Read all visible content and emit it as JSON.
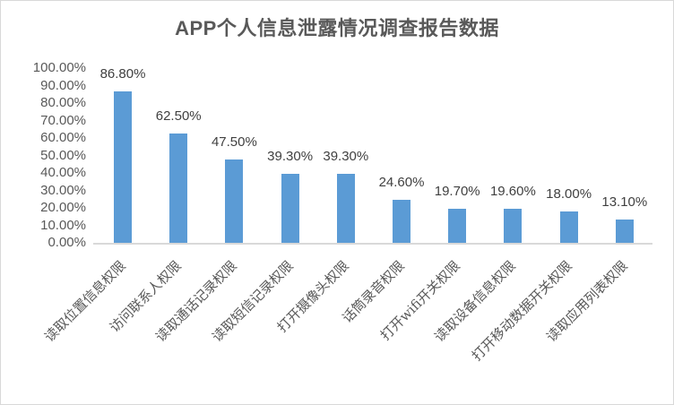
{
  "chart": {
    "title": "APP个人信息泄露情况调查报告数据",
    "y_ticks": [
      "100.00%",
      "90.00%",
      "80.00%",
      "70.00%",
      "60.00%",
      "50.00%",
      "40.00%",
      "30.00%",
      "20.00%",
      "10.00%",
      "0.00%"
    ],
    "bars": [
      {
        "label": "读取位置信息权限",
        "value_label": "86.80%"
      },
      {
        "label": "访问联系人权限",
        "value_label": "62.50%"
      },
      {
        "label": "读取通话记录权限",
        "value_label": "47.50%"
      },
      {
        "label": "读取短信记录权限",
        "value_label": "39.30%"
      },
      {
        "label": "打开摄像头权限",
        "value_label": "39.30%"
      },
      {
        "label": "话筒录音权限",
        "value_label": "24.60%"
      },
      {
        "label": "打开wifi开关权限",
        "value_label": "19.70%"
      },
      {
        "label": "读取设备信息权限",
        "value_label": "19.60%"
      },
      {
        "label": "打开移动数据开关权限",
        "value_label": "18.00%"
      },
      {
        "label": "读取应用列表权限",
        "value_label": "13.10%"
      }
    ],
    "bar_color": "#5B9BD5"
  },
  "chart_data": {
    "type": "bar",
    "title": "APP个人信息泄露情况调查报告数据",
    "categories": [
      "读取位置信息权限",
      "访问联系人权限",
      "读取通话记录权限",
      "读取短信记录权限",
      "打开摄像头权限",
      "话筒录音权限",
      "打开wifi开关权限",
      "读取设备信息权限",
      "打开移动数据开关权限",
      "读取应用列表权限"
    ],
    "values": [
      86.8,
      62.5,
      47.5,
      39.3,
      39.3,
      24.6,
      19.7,
      19.6,
      18.0,
      13.1
    ],
    "value_format": "percent, two decimals",
    "xlabel": "",
    "ylabel": "",
    "ylim": [
      0,
      100
    ],
    "y_tick_step": 10,
    "grid": false,
    "legend": null,
    "data_labels": true,
    "colors": [
      "#5B9BD5"
    ]
  }
}
